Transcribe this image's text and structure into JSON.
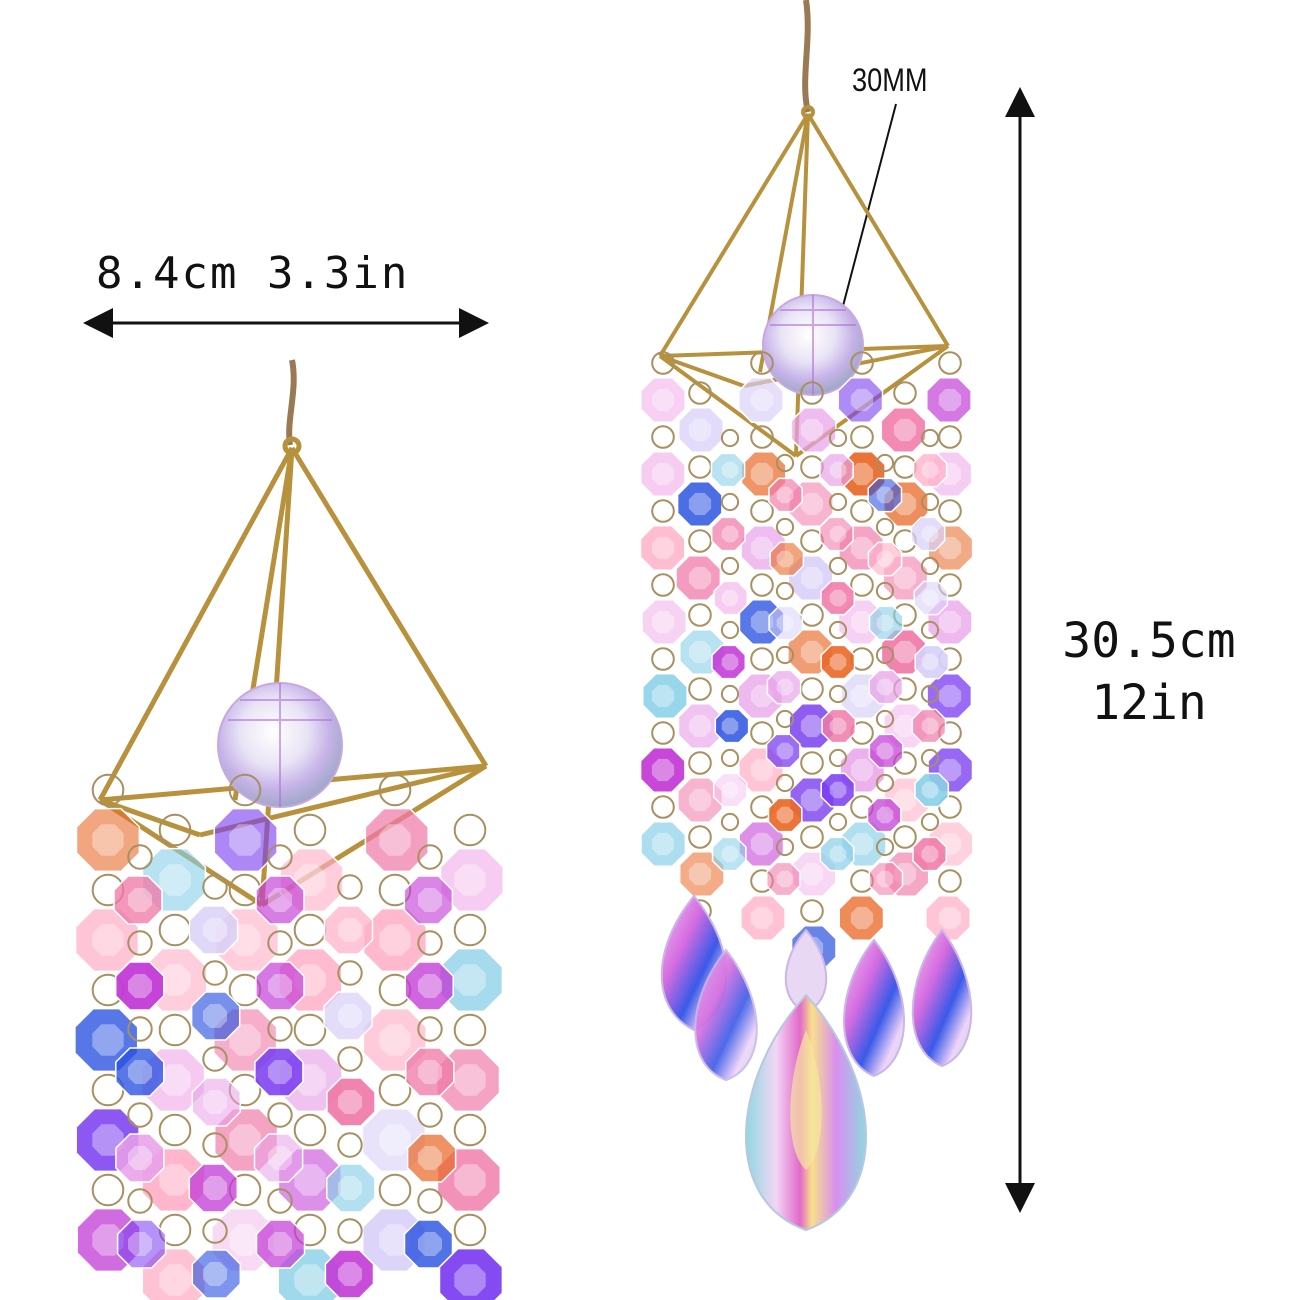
{
  "dimensions": {
    "width_label": "8.4cm  3.3in",
    "bead_label": "30MM",
    "height_cm": "30.5cm",
    "height_in": "12in"
  },
  "colors": {
    "brass": "#b8913c",
    "string": "#9a7a55",
    "ring": "#a89060",
    "arrow": "#111111",
    "crystal_palette": [
      "#c23bd6",
      "#e8a0e8",
      "#7a3df0",
      "#f07aa8",
      "#ffb0c8",
      "#e96a2a",
      "#8ad0e8",
      "#d8d0f8",
      "#2a52e0",
      "#f5c6f0"
    ]
  }
}
